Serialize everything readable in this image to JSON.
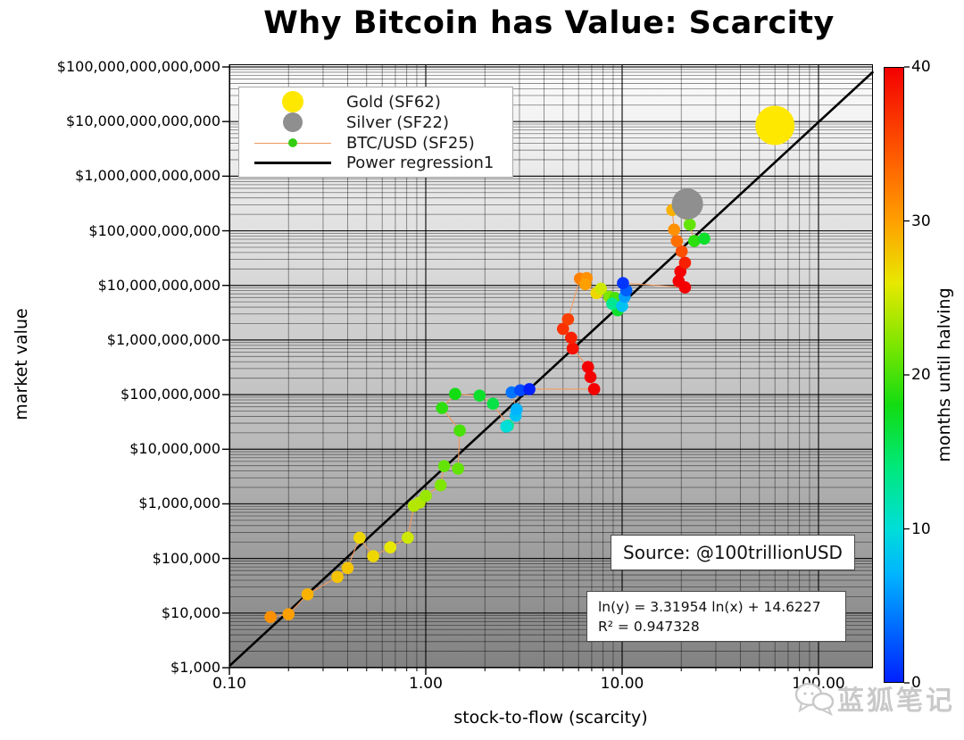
{
  "title": "Why Bitcoin has Value: Scarcity",
  "axes": {
    "x_label": "stock-to-flow (scarcity)",
    "y_label": "market value",
    "x_ticks": [
      {
        "v": 0.1,
        "label": "0.10"
      },
      {
        "v": 1,
        "label": "1.00"
      },
      {
        "v": 10,
        "label": "10.00"
      },
      {
        "v": 100,
        "label": "100.00"
      }
    ],
    "y_ticks": [
      {
        "v": 100000000000000.0,
        "label": "$100,000,000,000,000"
      },
      {
        "v": 10000000000000.0,
        "label": "$10,000,000,000,000"
      },
      {
        "v": 1000000000000.0,
        "label": "$1,000,000,000,000"
      },
      {
        "v": 100000000000.0,
        "label": "$100,000,000,000"
      },
      {
        "v": 10000000000.0,
        "label": "$10,000,000,000"
      },
      {
        "v": 1000000000.0,
        "label": "$1,000,000,000"
      },
      {
        "v": 100000000.0,
        "label": "$100,000,000"
      },
      {
        "v": 10000000.0,
        "label": "$10,000,000"
      },
      {
        "v": 1000000.0,
        "label": "$1,000,000"
      },
      {
        "v": 100000.0,
        "label": "$100,000"
      },
      {
        "v": 10000.0,
        "label": "$10,000"
      },
      {
        "v": 1000.0,
        "label": "$1,000"
      }
    ]
  },
  "legend": {
    "items": [
      {
        "label": "Gold (SF62)",
        "marker": "gold-dot"
      },
      {
        "label": "Silver (SF22)",
        "marker": "silver-dot"
      },
      {
        "label": "BTC/USD (SF25)",
        "marker": "line-with-dot"
      },
      {
        "label": "Power regression1",
        "marker": "black-line"
      }
    ]
  },
  "colorbar": {
    "label": "months until halving",
    "min": 0,
    "max": 40,
    "ticks": [
      "0",
      "10",
      "20",
      "30",
      "40"
    ]
  },
  "annotations": {
    "source": "Source: @100trillionUSD",
    "equation_line1": "ln(y) = 3.31954 ln(x) + 14.6227",
    "equation_line2": "R² = 0.947328"
  },
  "watermark": {
    "text": "蓝狐笔记"
  },
  "colors": {
    "gold": "#ffe800",
    "silver": "#8f8f8f",
    "btc_connector": "#f09a5e",
    "btc_legend_dot": "#33cc11",
    "regression": "#000000",
    "plot_bg_top": "#fcfcfc",
    "plot_bg_bottom": "#828282"
  },
  "chart_data": {
    "type": "scatter",
    "title": "Why Bitcoin has Value: Scarcity",
    "xlabel": "stock-to-flow (scarcity)",
    "ylabel": "market value",
    "x_scale": "log",
    "y_scale": "log",
    "xlim": [
      0.1,
      190
    ],
    "ylim": [
      1000,
      110000000000000
    ],
    "grid": "log minor + major, both axes",
    "legend_position": "upper left",
    "regression": {
      "slope_ln": 3.31954,
      "intercept_ln": 14.6227,
      "r_squared": 0.947328
    },
    "gold_point": {
      "sf": 60,
      "market_value": 8500000000000.0,
      "legend_sf": 62
    },
    "silver_point": {
      "sf": 21.5,
      "market_value": 310000000000.0,
      "legend_sf": 22
    },
    "color_by": "months_until_halving",
    "colormap_stops": [
      [
        0,
        "#0020ff"
      ],
      [
        7,
        "#00b4ff"
      ],
      [
        10,
        "#00ded8"
      ],
      [
        14,
        "#00e87a"
      ],
      [
        18,
        "#12dc12"
      ],
      [
        22,
        "#7ee600"
      ],
      [
        26,
        "#e8e800"
      ],
      [
        30,
        "#ffa000"
      ],
      [
        34,
        "#ff5f00"
      ],
      [
        40,
        "#f40000"
      ]
    ],
    "btc_points_sf_value_months": [
      [
        0.162,
        8500,
        31
      ],
      [
        0.2,
        9500,
        30
      ],
      [
        0.25,
        22000,
        29
      ],
      [
        0.355,
        46000,
        28
      ],
      [
        0.4,
        67000,
        28
      ],
      [
        0.46,
        240000,
        27
      ],
      [
        0.54,
        110000,
        27
      ],
      [
        0.66,
        160000,
        26
      ],
      [
        0.81,
        240000,
        25
      ],
      [
        0.87,
        920000,
        24
      ],
      [
        0.93,
        1060000,
        24
      ],
      [
        1.0,
        1400000,
        23
      ],
      [
        1.19,
        2200000,
        22
      ],
      [
        1.24,
        4900000,
        21
      ],
      [
        1.46,
        4400000,
        21
      ],
      [
        1.49,
        22000000,
        20
      ],
      [
        1.21,
        57000000,
        19
      ],
      [
        1.41,
        103000000,
        18
      ],
      [
        1.88,
        96000000,
        17
      ],
      [
        2.2,
        68000000,
        16
      ],
      [
        2.62,
        27000000,
        13
      ],
      [
        2.57,
        26000000,
        10
      ],
      [
        2.87,
        41000000,
        8
      ],
      [
        2.9,
        54000000,
        7
      ],
      [
        2.74,
        110000000,
        4
      ],
      [
        3.03,
        120000000,
        2
      ],
      [
        3.37,
        126000000,
        0
      ],
      [
        7.2,
        126000000,
        40
      ],
      [
        6.9,
        210000000,
        40
      ],
      [
        6.7,
        320000000,
        40
      ],
      [
        5.6,
        700000000,
        39
      ],
      [
        5.5,
        1100000000,
        38
      ],
      [
        5.0,
        1600000000,
        37
      ],
      [
        5.3,
        2400000000,
        36
      ],
      [
        6.1,
        13300000000,
        32
      ],
      [
        6.6,
        13600000000,
        31
      ],
      [
        6.5,
        10500000000,
        30
      ],
      [
        7.4,
        7200000000,
        27
      ],
      [
        7.8,
        8700000000,
        25
      ],
      [
        8.6,
        6200000000,
        22
      ],
      [
        9.2,
        5900000000,
        20
      ],
      [
        9.5,
        3500000000,
        17
      ],
      [
        8.9,
        4600000000,
        13
      ],
      [
        10.0,
        4200000000,
        8
      ],
      [
        10.3,
        6200000000,
        6
      ],
      [
        10.5,
        8100000000,
        3
      ],
      [
        10.1,
        11000000000,
        1
      ],
      [
        20.9,
        9200000000,
        40
      ],
      [
        19.4,
        12000000000,
        40
      ],
      [
        19.8,
        18000000000,
        40
      ],
      [
        20.9,
        26000000000,
        38
      ],
      [
        20.1,
        42000000000,
        35
      ],
      [
        19.0,
        65000000000,
        33
      ],
      [
        18.4,
        105000000000,
        31
      ],
      [
        18.0,
        240000000000,
        29
      ],
      [
        21.5,
        200000000000,
        26
      ],
      [
        22.1,
        130000000000,
        21
      ],
      [
        23.3,
        65000000000,
        19
      ],
      [
        26.2,
        72000000000,
        17
      ]
    ]
  }
}
